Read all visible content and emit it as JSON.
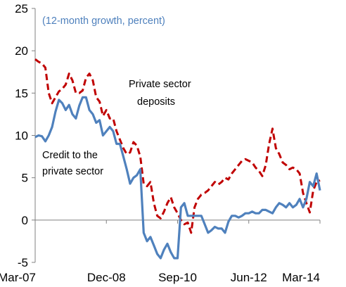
{
  "chart_data": {
    "type": "line",
    "title": "",
    "subtitle": "(12-month growth, percent)",
    "xlabel": "",
    "ylabel": "",
    "xlim": [
      "2007-03",
      "2014-03"
    ],
    "ylim": [
      -5,
      25
    ],
    "yticks": [
      "25",
      "20",
      "15",
      "10",
      "5",
      "0",
      "-5"
    ],
    "xticks": [
      "Mar-07",
      "Dec-08",
      "Sep-10",
      "Jun-12",
      "Mar-14"
    ],
    "grid": false,
    "colors": {
      "deposits": "#c00000",
      "credit": "#4f81bd",
      "subtitle": "#4f81bd"
    },
    "series": [
      {
        "name": "Private sector deposits",
        "style": "dashed",
        "x": [
          "2007-03",
          "2007-04",
          "2007-05",
          "2007-06",
          "2007-07",
          "2007-08",
          "2007-09",
          "2007-10",
          "2007-11",
          "2007-12",
          "2008-01",
          "2008-02",
          "2008-03",
          "2008-04",
          "2008-05",
          "2008-06",
          "2008-07",
          "2008-08",
          "2008-09",
          "2008-10",
          "2008-11",
          "2008-12",
          "2009-01",
          "2009-02",
          "2009-03",
          "2009-04",
          "2009-05",
          "2009-06",
          "2009-07",
          "2009-08",
          "2009-09",
          "2009-10",
          "2009-11",
          "2009-12",
          "2010-01",
          "2010-02",
          "2010-03",
          "2010-04",
          "2010-05",
          "2010-06",
          "2010-07",
          "2010-08",
          "2010-09",
          "2010-10",
          "2010-11",
          "2010-12",
          "2011-01",
          "2011-02",
          "2011-03",
          "2011-04",
          "2011-05",
          "2011-06",
          "2011-07",
          "2011-08",
          "2011-09",
          "2011-10",
          "2011-11",
          "2011-12",
          "2012-01",
          "2012-02",
          "2012-03",
          "2012-04",
          "2012-05",
          "2012-06",
          "2012-07",
          "2012-08",
          "2012-09",
          "2012-10",
          "2012-11",
          "2012-12",
          "2013-01",
          "2013-02",
          "2013-03",
          "2013-04",
          "2013-05",
          "2013-06",
          "2013-07",
          "2013-08",
          "2013-09",
          "2013-10",
          "2013-11",
          "2013-12",
          "2014-01",
          "2014-02",
          "2014-03"
        ],
        "values": [
          19.0,
          18.7,
          18.5,
          18.0,
          15.0,
          13.8,
          14.5,
          15.2,
          15.5,
          16.0,
          17.3,
          16.5,
          15.0,
          15.0,
          15.3,
          16.8,
          17.3,
          16.5,
          14.5,
          14.0,
          12.3,
          13.0,
          12.0,
          12.0,
          10.5,
          9.5,
          8.5,
          7.8,
          8.0,
          9.2,
          8.8,
          7.5,
          4.3,
          4.0,
          4.5,
          2.0,
          0.5,
          0.2,
          1.0,
          2.0,
          2.7,
          1.5,
          0.8,
          0.0,
          -0.5,
          -0.3,
          -1.5,
          1.5,
          2.5,
          3.0,
          3.2,
          3.5,
          4.0,
          4.5,
          4.2,
          4.5,
          5.0,
          4.8,
          5.5,
          6.0,
          6.5,
          7.0,
          7.2,
          7.0,
          6.8,
          6.2,
          5.8,
          5.2,
          6.5,
          9.0,
          10.8,
          8.5,
          7.8,
          6.8,
          6.5,
          6.0,
          6.2,
          6.0,
          5.5,
          3.2,
          2.0,
          0.9,
          3.5,
          4.5,
          4.7
        ]
      },
      {
        "name": "Credit to the private sector",
        "style": "solid",
        "x": [
          "2007-03",
          "2007-04",
          "2007-05",
          "2007-06",
          "2007-07",
          "2007-08",
          "2007-09",
          "2007-10",
          "2007-11",
          "2007-12",
          "2008-01",
          "2008-02",
          "2008-03",
          "2008-04",
          "2008-05",
          "2008-06",
          "2008-07",
          "2008-08",
          "2008-09",
          "2008-10",
          "2008-11",
          "2008-12",
          "2009-01",
          "2009-02",
          "2009-03",
          "2009-04",
          "2009-05",
          "2009-06",
          "2009-07",
          "2009-08",
          "2009-09",
          "2009-10",
          "2009-11",
          "2009-12",
          "2010-01",
          "2010-02",
          "2010-03",
          "2010-04",
          "2010-05",
          "2010-06",
          "2010-07",
          "2010-08",
          "2010-09",
          "2010-10",
          "2010-11",
          "2010-12",
          "2011-01",
          "2011-02",
          "2011-03",
          "2011-04",
          "2011-05",
          "2011-06",
          "2011-07",
          "2011-08",
          "2011-09",
          "2011-10",
          "2011-11",
          "2011-12",
          "2012-01",
          "2012-02",
          "2012-03",
          "2012-04",
          "2012-05",
          "2012-06",
          "2012-07",
          "2012-08",
          "2012-09",
          "2012-10",
          "2012-11",
          "2012-12",
          "2013-01",
          "2013-02",
          "2013-03",
          "2013-04",
          "2013-05",
          "2013-06",
          "2013-07",
          "2013-08",
          "2013-09",
          "2013-10",
          "2013-11",
          "2013-12",
          "2014-01",
          "2014-02",
          "2014-03"
        ],
        "values": [
          9.8,
          10.0,
          9.9,
          9.3,
          10.0,
          11.0,
          12.8,
          14.2,
          13.8,
          13.0,
          13.6,
          12.5,
          12.0,
          13.5,
          14.5,
          14.5,
          13.0,
          12.5,
          11.5,
          11.8,
          10.0,
          10.5,
          11.0,
          10.5,
          9.0,
          9.0,
          7.5,
          6.0,
          4.3,
          5.0,
          5.3,
          6.0,
          -1.5,
          -2.5,
          -2.0,
          -3.0,
          -4.0,
          -4.5,
          -3.5,
          -2.8,
          -3.8,
          -4.5,
          -4.5,
          1.5,
          2.0,
          0.5,
          0.5,
          0.5,
          0.5,
          0.5,
          -0.5,
          -1.5,
          -1.2,
          -0.8,
          -1.0,
          -1.0,
          -1.5,
          -0.2,
          0.5,
          0.5,
          0.3,
          0.5,
          0.8,
          0.8,
          1.0,
          0.8,
          0.8,
          1.2,
          1.2,
          1.0,
          0.8,
          1.5,
          2.0,
          1.8,
          1.5,
          2.0,
          1.5,
          1.8,
          2.5,
          1.5,
          2.5,
          4.5,
          4.0,
          5.5,
          3.5
        ]
      }
    ],
    "annotations": [
      {
        "lines": [
          "Private sector",
          "deposits"
        ],
        "series": "deposits"
      },
      {
        "lines": [
          "Credit to  the",
          "private sector"
        ],
        "series": "credit"
      }
    ]
  }
}
